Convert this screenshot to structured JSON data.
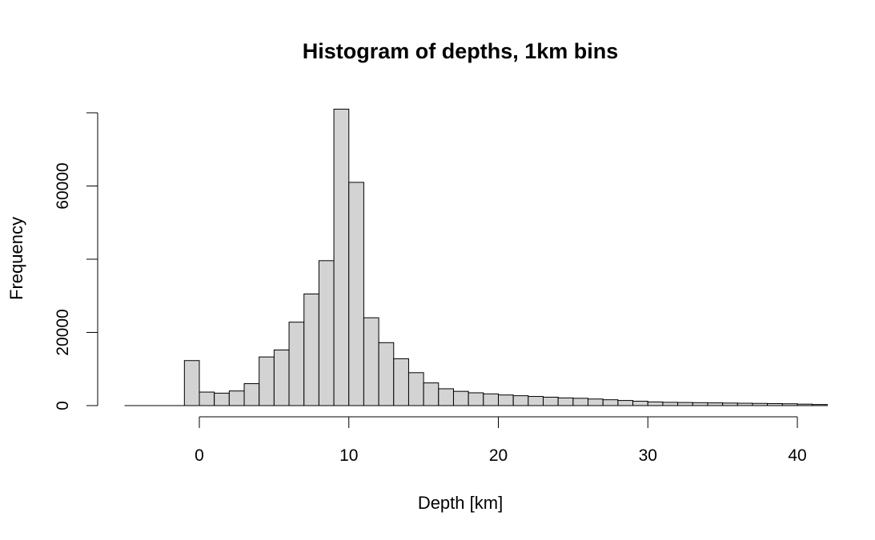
{
  "chart_data": {
    "type": "bar",
    "title": "Histogram of depths, 1km bins",
    "xlabel": "Depth [km]",
    "ylabel": "Frequency",
    "bin_width": 1,
    "bin_starts": [
      -1,
      0,
      1,
      2,
      3,
      4,
      5,
      6,
      7,
      8,
      9,
      10,
      11,
      12,
      13,
      14,
      15,
      16,
      17,
      18,
      19,
      20,
      21,
      22,
      23,
      24,
      25,
      26,
      27,
      28,
      29,
      30,
      31,
      32,
      33,
      34,
      35,
      36,
      37,
      38,
      39,
      40,
      41
    ],
    "values": [
      12300,
      3700,
      3400,
      4000,
      6000,
      13300,
      15200,
      22800,
      30500,
      39600,
      81000,
      61000,
      24000,
      17200,
      12800,
      9000,
      6200,
      4600,
      3900,
      3500,
      3200,
      2900,
      2700,
      2500,
      2300,
      2100,
      2000,
      1800,
      1600,
      1400,
      1200,
      1000,
      900,
      850,
      800,
      750,
      700,
      650,
      600,
      550,
      500,
      400,
      300
    ],
    "xlim": [
      -5,
      42
    ],
    "ylim": [
      0,
      80000
    ],
    "x_ticks": [
      0,
      10,
      20,
      30,
      40
    ],
    "x_tick_labels": [
      "0",
      "10",
      "20",
      "30",
      "40"
    ],
    "y_ticks": [
      0,
      20000,
      40000,
      60000,
      80000
    ],
    "y_tick_labels": [
      "0",
      "20000",
      "",
      "60000",
      ""
    ],
    "bar_color": "#d3d3d3",
    "grid": false
  }
}
